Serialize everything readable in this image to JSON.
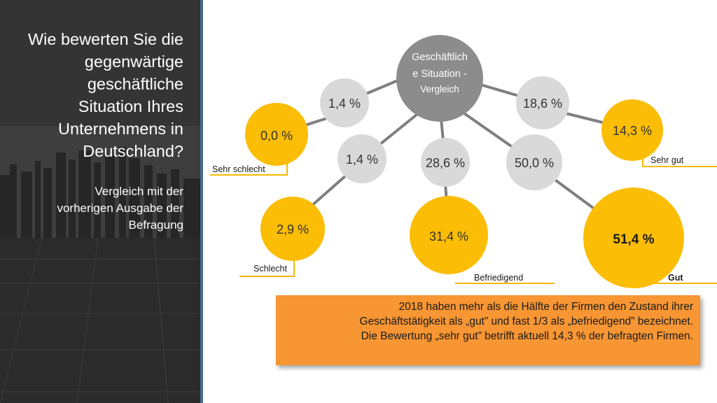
{
  "title": "Wie bewerten Sie die gegenwärtige geschäftliche Situation Ihres Unternehmens in Deutschland?",
  "title_lines": [
    "Wie bewerten Sie die",
    "gegenwärtige",
    "geschäftliche",
    "Situation Ihres",
    "Unternehmens in",
    "Deutschland?"
  ],
  "subtitle_lines": [
    "Vergleich mit der",
    "vorherigen Ausgabe der",
    "Befragung"
  ],
  "center": {
    "lines": [
      "Geschäftlich",
      "e Situation -",
      "Vergleich"
    ]
  },
  "categories": [
    {
      "label": "Sehr schlecht",
      "previous": "1,4 %",
      "current": "0,0 %"
    },
    {
      "label": "Schlecht",
      "previous": "1,4 %",
      "current": "2,9 %"
    },
    {
      "label": "Befriedigend",
      "previous": "28,6 %",
      "current": "31,4 %"
    },
    {
      "label": "Gut",
      "previous": "50,0 %",
      "current": "51,4 %"
    },
    {
      "label": "Sehr gut",
      "previous": "18,6 %",
      "current": "14,3 %"
    }
  ],
  "callout_lines": [
    "2018 haben mehr als die Hälfte der Firmen den Zustand ihrer",
    "Geschäftstätigkeit als „gut” und fast 1/3 als „befriedigend” bezeichnet.",
    "Die Bewertung „sehr gut” betrifft aktuell 14,3 % der befragten Firmen."
  ],
  "colors": {
    "center": "#8c8c8c",
    "previous": "#d9d9d9",
    "current": "#fbbd05",
    "label_line": "#f5b800",
    "connector": "#7f7f7f",
    "callout": "#f79633",
    "panel_border": "#4b6b8d"
  }
}
